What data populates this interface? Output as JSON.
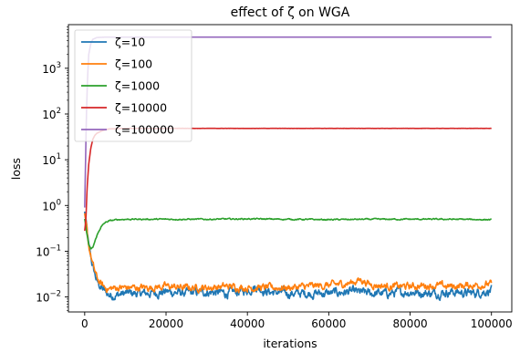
{
  "chart_data": {
    "type": "line",
    "title": "effect of ζ on WGA",
    "xlabel": "iterations",
    "ylabel": "loss",
    "xlim": [
      -4000,
      105000
    ],
    "ylim": [
      0.0047,
      9000
    ],
    "yscale": "log",
    "grid": false,
    "legend_position": "upper-left",
    "x_ticks": [
      0,
      20000,
      40000,
      60000,
      80000,
      100000
    ],
    "x_tick_labels": [
      "0",
      "20000",
      "40000",
      "60000",
      "80000",
      "100000"
    ],
    "y_ticks": [
      0.01,
      0.1,
      1,
      10,
      100,
      1000
    ],
    "y_tick_labels": [
      {
        "base": "10",
        "exp": "−2"
      },
      {
        "base": "10",
        "exp": "−1"
      },
      {
        "base": "10",
        "exp": "0"
      },
      {
        "base": "10",
        "exp": "1"
      },
      {
        "base": "10",
        "exp": "2"
      },
      {
        "base": "10",
        "exp": "3"
      }
    ],
    "series": [
      {
        "name": "ζ=10",
        "color": "#1f77b4",
        "x": [
          0,
          500,
          1000,
          2000,
          3000,
          4000,
          5000,
          6000,
          8000,
          10000,
          15000,
          20000,
          25000,
          30000,
          35000,
          40000,
          42000,
          45000,
          50000,
          55000,
          60000,
          65000,
          70000,
          75000,
          80000,
          85000,
          90000,
          95000,
          100000
        ],
        "y": [
          0.7,
          0.32,
          0.12,
          0.045,
          0.022,
          0.016,
          0.013,
          0.011,
          0.011,
          0.012,
          0.012,
          0.013,
          0.012,
          0.013,
          0.012,
          0.014,
          0.017,
          0.013,
          0.012,
          0.012,
          0.012,
          0.013,
          0.012,
          0.012,
          0.013,
          0.012,
          0.013,
          0.012,
          0.014
        ],
        "noise": 0.28
      },
      {
        "name": "ζ=100",
        "color": "#ff7f0e",
        "x": [
          0,
          500,
          1000,
          2000,
          3000,
          4000,
          5000,
          6000,
          8000,
          10000,
          15000,
          20000,
          25000,
          30000,
          35000,
          40000,
          45000,
          50000,
          55000,
          60000,
          65000,
          68000,
          70000,
          75000,
          80000,
          85000,
          90000,
          95000,
          100000
        ],
        "y": [
          0.6,
          0.3,
          0.13,
          0.05,
          0.026,
          0.019,
          0.016,
          0.015,
          0.016,
          0.016,
          0.016,
          0.017,
          0.016,
          0.016,
          0.017,
          0.016,
          0.016,
          0.016,
          0.017,
          0.018,
          0.02,
          0.024,
          0.019,
          0.017,
          0.017,
          0.018,
          0.017,
          0.018,
          0.019
        ],
        "noise": 0.22
      },
      {
        "name": "ζ=1000",
        "color": "#2ca02c",
        "x": [
          0,
          500,
          1000,
          1500,
          2000,
          3000,
          4000,
          5000,
          6000,
          8000,
          10000,
          20000,
          30000,
          40000,
          50000,
          60000,
          70000,
          80000,
          90000,
          100000
        ],
        "y": [
          0.5,
          0.25,
          0.14,
          0.11,
          0.12,
          0.22,
          0.34,
          0.42,
          0.46,
          0.49,
          0.5,
          0.5,
          0.5,
          0.51,
          0.5,
          0.49,
          0.5,
          0.5,
          0.5,
          0.49
        ],
        "noise": 0.04
      },
      {
        "name": "ζ=10000",
        "color": "#d62728",
        "x": [
          0,
          300,
          600,
          1000,
          1500,
          2000,
          2500,
          3000,
          4000,
          5000,
          6000,
          8000,
          10000,
          20000,
          40000,
          60000,
          80000,
          100000
        ],
        "y": [
          0.28,
          0.5,
          2.5,
          8,
          18,
          28,
          34,
          38,
          42,
          45,
          47,
          48,
          48.5,
          48.5,
          48.5,
          48.5,
          48.5,
          48.5
        ],
        "noise": 0.005
      },
      {
        "name": "ζ=100000",
        "color": "#9467bd",
        "x": [
          0,
          200,
          400,
          700,
          1000,
          1500,
          2000,
          3000,
          5000,
          10000,
          50000,
          100000
        ],
        "y": [
          0.9,
          8,
          80,
          600,
          2000,
          3500,
          4300,
          4700,
          4800,
          4800,
          4800,
          4800
        ],
        "noise": 0.001
      }
    ]
  }
}
